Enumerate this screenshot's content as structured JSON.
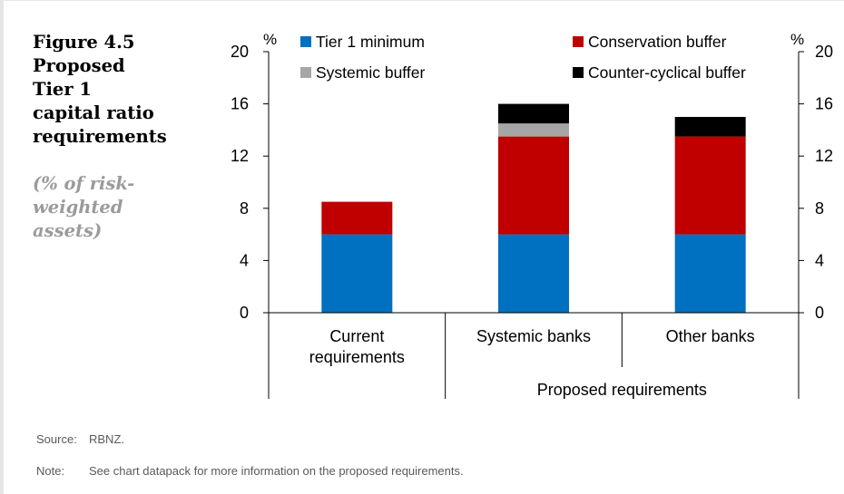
{
  "figure": {
    "title_lines": [
      "Figure 4.5",
      "Proposed",
      "Tier 1",
      "capital ratio",
      "requirements"
    ],
    "subtitle_lines": [
      "(% of risk-",
      "weighted",
      "assets)"
    ]
  },
  "footer": {
    "source_label": "Source:",
    "source_text": "RBNZ.",
    "note_label": "Note:",
    "note_text": "See chart datapack for more information on the proposed requirements."
  },
  "colors": {
    "tier1": "#0070c0",
    "conservation": "#c00000",
    "systemic": "#a6a6a6",
    "countercyclical": "#000000"
  },
  "chart_data": {
    "type": "bar",
    "stacked": true,
    "categories": [
      "Current requirements",
      "Systemic banks",
      "Other banks"
    ],
    "category_label_lines": [
      [
        "Current",
        "requirements"
      ],
      [
        "Systemic banks"
      ],
      [
        "Other banks"
      ]
    ],
    "group_label": "Proposed requirements",
    "series": [
      {
        "name": "Tier 1 minimum",
        "color": "#0070c0",
        "values": [
          6,
          6,
          6
        ]
      },
      {
        "name": "Conservation buffer",
        "color": "#c00000",
        "values": [
          2.5,
          7.5,
          7.5
        ]
      },
      {
        "name": "Systemic buffer",
        "color": "#a6a6a6",
        "values": [
          0,
          1,
          0
        ]
      },
      {
        "name": "Counter-cyclical buffer",
        "color": "#000000",
        "values": [
          0,
          1.5,
          1.5
        ]
      }
    ],
    "ylim": [
      0,
      20
    ],
    "yticks": [
      0,
      4,
      8,
      12,
      16,
      20
    ],
    "ylabel_left": "%",
    "ylabel_right": "%",
    "legend_position": "top",
    "grid": false
  }
}
